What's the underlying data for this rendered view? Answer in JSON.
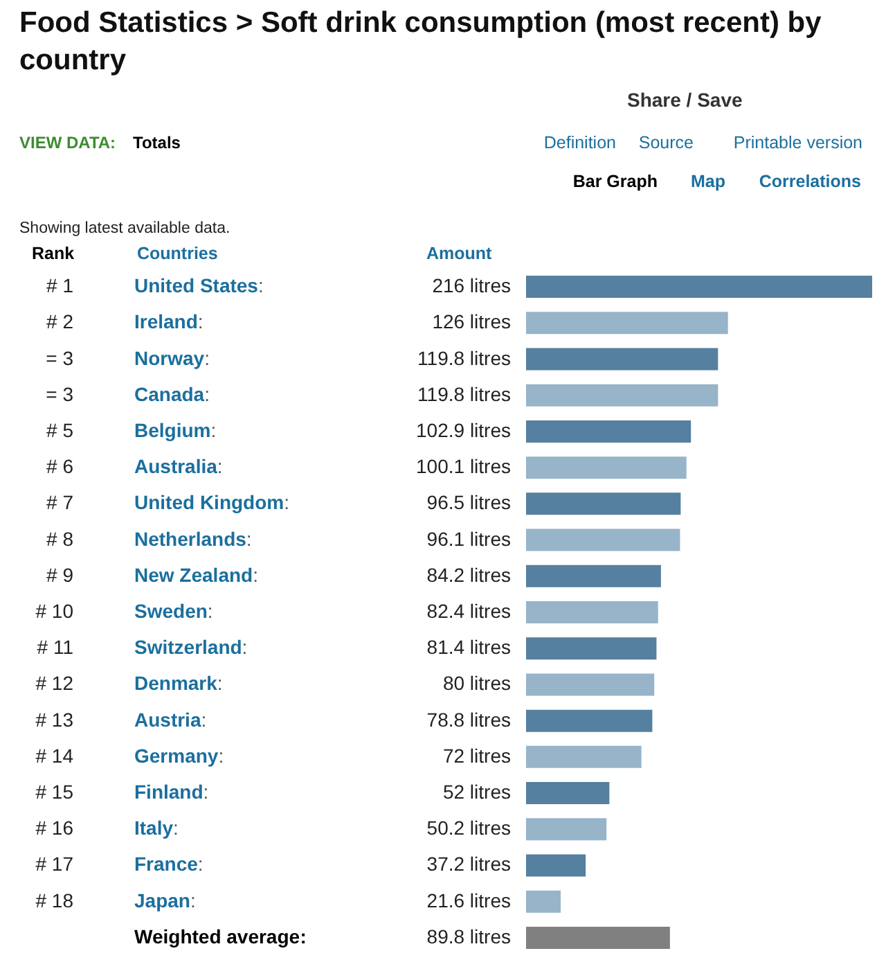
{
  "chart_data": {
    "type": "bar",
    "orientation": "horizontal",
    "title": "Food Statistics > Soft drink consumption (most recent) by country",
    "categories": [
      "United States",
      "Ireland",
      "Norway",
      "Canada",
      "Belgium",
      "Australia",
      "United Kingdom",
      "Netherlands",
      "New Zealand",
      "Sweden",
      "Switzerland",
      "Denmark",
      "Austria",
      "Germany",
      "Finland",
      "Italy",
      "France",
      "Japan",
      "Weighted average"
    ],
    "values": [
      216,
      126,
      119.8,
      119.8,
      102.9,
      100.1,
      96.5,
      96.1,
      84.2,
      82.4,
      81.4,
      80,
      78.8,
      72,
      52,
      50.2,
      37.2,
      21.6,
      89.8
    ],
    "colors": [
      "#55809f",
      "#97b4c9",
      "#55809f",
      "#97b4c9",
      "#55809f",
      "#97b4c9",
      "#55809f",
      "#97b4c9",
      "#55809f",
      "#97b4c9",
      "#55809f",
      "#97b4c9",
      "#55809f",
      "#97b4c9",
      "#55809f",
      "#97b4c9",
      "#55809f",
      "#97b4c9",
      "#808080"
    ],
    "value_labels": [
      "216 litres",
      "126 litres",
      "119.8 litres",
      "119.8 litres",
      "102.9 litres",
      "100.1 litres",
      "96.5 litres",
      "96.1 litres",
      "84.2 litres",
      "82.4 litres",
      "81.4 litres",
      "80 litres",
      "78.8 litres",
      "72 litres",
      "52 litres",
      "50.2 litres",
      "37.2 litres",
      "21.6 litres",
      "89.8 litres"
    ],
    "annotations": [
      "Share / Save",
      "VIEW DATA:",
      "Totals",
      "Definition",
      "Source",
      "Printable version",
      "Bar Graph",
      "Map",
      "Correlations",
      "Showing latest available data.",
      "Rank",
      "Countries",
      "Amount",
      ":",
      "# 1",
      "# 2",
      "= 3",
      "= 3",
      "# 5",
      "# 6",
      "# 7",
      "# 8",
      "# 9",
      "# 10",
      "# 11",
      "# 12",
      "# 13",
      "# 14",
      "# 15",
      "# 16",
      "# 17",
      "# 18"
    ]
  }
}
